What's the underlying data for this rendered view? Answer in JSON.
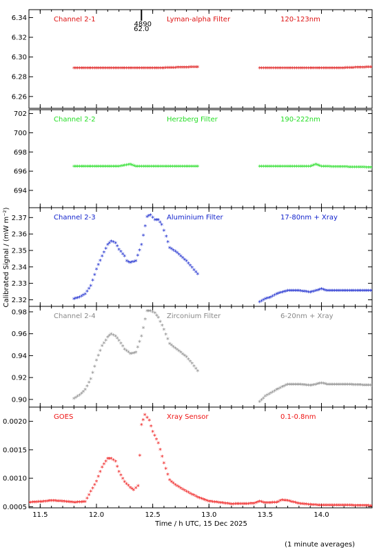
{
  "ylabel": "Calibrated Signal / (mW m⁻²)",
  "xlabel": "Time / h UTC, 15 Dec 2025",
  "footnote": "(1 minute averages)",
  "marker": {
    "x": 12.4,
    "label_top": "4890",
    "label_bottom": "62.0"
  },
  "chart_data": [
    {
      "type": "scatter",
      "title": "Channel 2-1",
      "filter": "Lyman-alpha Filter",
      "band": "120-123nm",
      "color": "#dd1111",
      "ylim": [
        6.248,
        6.348
      ],
      "yticks": [
        6.26,
        6.28,
        6.3,
        6.32,
        6.34
      ],
      "ytick_labels": [
        "6.26",
        "6.28",
        "6.30",
        "6.32",
        "6.34"
      ],
      "segments": [
        {
          "points": [
            [
              11.8,
              6.288
            ],
            [
              12.2,
              6.288
            ],
            [
              12.6,
              6.288
            ],
            [
              12.9,
              6.289
            ]
          ]
        },
        {
          "points": [
            [
              13.45,
              6.288
            ],
            [
              13.9,
              6.288
            ],
            [
              14.2,
              6.288
            ],
            [
              14.45,
              6.289
            ]
          ]
        }
      ]
    },
    {
      "type": "scatter",
      "title": "Channel 2-2",
      "filter": "Herzberg Filter",
      "band": "190-222nm",
      "color": "#22dd22",
      "ylim": [
        692.2,
        702.4
      ],
      "yticks": [
        694,
        696,
        698,
        700,
        702
      ],
      "ytick_labels": [
        "694",
        "696",
        "698",
        "700",
        "702"
      ],
      "segments": [
        {
          "points": [
            [
              11.8,
              696.4
            ],
            [
              12.2,
              696.4
            ],
            [
              12.3,
              696.6
            ],
            [
              12.35,
              696.4
            ],
            [
              12.9,
              696.4
            ]
          ]
        },
        {
          "points": [
            [
              13.45,
              696.4
            ],
            [
              13.9,
              696.4
            ],
            [
              13.95,
              696.6
            ],
            [
              14.0,
              696.4
            ],
            [
              14.45,
              696.3
            ]
          ]
        }
      ]
    },
    {
      "type": "scatter",
      "title": "Channel 2-3",
      "filter": "Aluminium Filter",
      "band": "17-80nm + Xray",
      "color": "#1122cc",
      "ylim": [
        2.316,
        2.376
      ],
      "yticks": [
        2.32,
        2.33,
        2.34,
        2.35,
        2.36,
        2.37
      ],
      "ytick_labels": [
        "2.32",
        "2.33",
        "2.34",
        "2.35",
        "2.36",
        "2.37"
      ],
      "segments": [
        {
          "points": [
            [
              11.8,
              2.32
            ],
            [
              11.85,
              2.321
            ],
            [
              11.9,
              2.323
            ],
            [
              11.95,
              2.328
            ],
            [
              12.0,
              2.338
            ],
            [
              12.05,
              2.346
            ],
            [
              12.1,
              2.353
            ],
            [
              12.13,
              2.355
            ],
            [
              12.17,
              2.354
            ],
            [
              12.2,
              2.35
            ],
            [
              12.25,
              2.346
            ],
            [
              12.27,
              2.343
            ],
            [
              12.3,
              2.342
            ],
            [
              12.35,
              2.343
            ],
            [
              12.4,
              2.353
            ],
            [
              12.45,
              2.37
            ],
            [
              12.48,
              2.371
            ],
            [
              12.52,
              2.368
            ],
            [
              12.55,
              2.368
            ],
            [
              12.58,
              2.365
            ],
            [
              12.62,
              2.358
            ],
            [
              12.65,
              2.351
            ],
            [
              12.7,
              2.349
            ],
            [
              12.75,
              2.346
            ],
            [
              12.8,
              2.343
            ],
            [
              12.85,
              2.339
            ],
            [
              12.9,
              2.335
            ]
          ]
        },
        {
          "points": [
            [
              13.45,
              2.318
            ],
            [
              13.5,
              2.32
            ],
            [
              13.55,
              2.321
            ],
            [
              13.6,
              2.323
            ],
            [
              13.7,
              2.325
            ],
            [
              13.8,
              2.325
            ],
            [
              13.9,
              2.324
            ],
            [
              13.95,
              2.325
            ],
            [
              14.0,
              2.326
            ],
            [
              14.05,
              2.325
            ],
            [
              14.2,
              2.325
            ],
            [
              14.45,
              2.325
            ]
          ]
        }
      ]
    },
    {
      "type": "scatter",
      "title": "Channel 2-4",
      "filter": "Zirconium Filter",
      "band": "6-20nm + Xray",
      "color": "#888888",
      "ylim": [
        0.893,
        0.985
      ],
      "yticks": [
        0.9,
        0.92,
        0.94,
        0.96,
        0.98
      ],
      "ytick_labels": [
        "0.90",
        "0.92",
        "0.94",
        "0.96",
        "0.98"
      ],
      "segments": [
        {
          "points": [
            [
              11.8,
              0.9
            ],
            [
              11.85,
              0.903
            ],
            [
              11.9,
              0.908
            ],
            [
              11.95,
              0.918
            ],
            [
              12.0,
              0.935
            ],
            [
              12.05,
              0.948
            ],
            [
              12.1,
              0.956
            ],
            [
              12.13,
              0.959
            ],
            [
              12.17,
              0.957
            ],
            [
              12.2,
              0.953
            ],
            [
              12.25,
              0.945
            ],
            [
              12.3,
              0.941
            ],
            [
              12.35,
              0.942
            ],
            [
              12.4,
              0.957
            ],
            [
              12.45,
              0.98
            ],
            [
              12.48,
              0.98
            ],
            [
              12.52,
              0.978
            ],
            [
              12.55,
              0.974
            ],
            [
              12.6,
              0.963
            ],
            [
              12.65,
              0.95
            ],
            [
              12.7,
              0.946
            ],
            [
              12.75,
              0.942
            ],
            [
              12.8,
              0.938
            ],
            [
              12.85,
              0.932
            ],
            [
              12.9,
              0.925
            ]
          ]
        },
        {
          "points": [
            [
              13.45,
              0.897
            ],
            [
              13.5,
              0.902
            ],
            [
              13.55,
              0.905
            ],
            [
              13.6,
              0.908
            ],
            [
              13.7,
              0.913
            ],
            [
              13.8,
              0.913
            ],
            [
              13.9,
              0.912
            ],
            [
              13.95,
              0.913
            ],
            [
              14.0,
              0.914
            ],
            [
              14.05,
              0.913
            ],
            [
              14.2,
              0.913
            ],
            [
              14.45,
              0.912
            ]
          ]
        }
      ]
    },
    {
      "type": "scatter",
      "title": "GOES",
      "filter": "Xray Sensor",
      "band": "0.1-0.8nm",
      "color": "#ee1111",
      "ylim": [
        0.00048,
        0.00225
      ],
      "yticks": [
        0.0005,
        0.001,
        0.0015,
        0.002
      ],
      "ytick_labels": [
        "0.0005",
        "0.0010",
        "0.0015",
        "0.0020"
      ],
      "segments": [
        {
          "points": [
            [
              11.4,
              0.00056
            ],
            [
              11.5,
              0.00057
            ],
            [
              11.6,
              0.00059
            ],
            [
              11.7,
              0.00058
            ],
            [
              11.8,
              0.00056
            ],
            [
              11.9,
              0.00057
            ],
            [
              11.95,
              0.00075
            ],
            [
              12.0,
              0.00093
            ],
            [
              12.05,
              0.00118
            ],
            [
              12.1,
              0.00133
            ],
            [
              12.13,
              0.00133
            ],
            [
              12.17,
              0.00128
            ],
            [
              12.2,
              0.0011
            ],
            [
              12.25,
              0.00092
            ],
            [
              12.3,
              0.00082
            ],
            [
              12.33,
              0.00078
            ],
            [
              12.37,
              0.00085
            ],
            [
              12.4,
              0.00192
            ],
            [
              12.43,
              0.0021
            ],
            [
              12.47,
              0.002
            ],
            [
              12.5,
              0.0018
            ],
            [
              12.55,
              0.0016
            ],
            [
              12.6,
              0.00125
            ],
            [
              12.65,
              0.00095
            ],
            [
              12.7,
              0.00087
            ],
            [
              12.8,
              0.00075
            ],
            [
              12.9,
              0.00065
            ],
            [
              13.0,
              0.00058
            ],
            [
              13.2,
              0.00053
            ],
            [
              13.4,
              0.00054
            ],
            [
              13.45,
              0.00058
            ],
            [
              13.5,
              0.00055
            ],
            [
              13.6,
              0.00056
            ],
            [
              13.65,
              0.0006
            ],
            [
              13.7,
              0.00059
            ],
            [
              13.8,
              0.00054
            ],
            [
              13.9,
              0.00052
            ],
            [
              14.0,
              0.00051
            ],
            [
              14.2,
              0.00051
            ],
            [
              14.45,
              0.0005
            ]
          ]
        }
      ]
    }
  ],
  "xaxis": {
    "xlim": [
      11.4,
      14.45
    ],
    "ticks": [
      11.5,
      12.0,
      12.5,
      13.0,
      13.5,
      14.0
    ],
    "tick_labels": [
      "11.5",
      "12.0",
      "12.5",
      "13.0",
      "13.5",
      "14.0"
    ]
  }
}
